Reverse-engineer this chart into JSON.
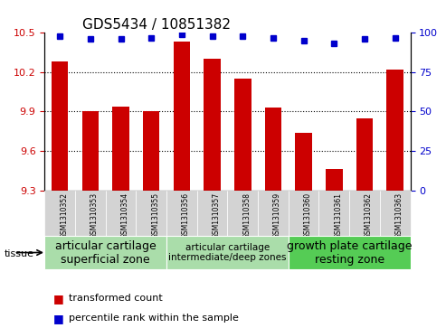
{
  "title": "GDS5434 / 10851382",
  "samples": [
    "GSM1310352",
    "GSM1310353",
    "GSM1310354",
    "GSM1310355",
    "GSM1310356",
    "GSM1310357",
    "GSM1310358",
    "GSM1310359",
    "GSM1310360",
    "GSM1310361",
    "GSM1310362",
    "GSM1310363"
  ],
  "bar_values": [
    10.28,
    9.9,
    9.94,
    9.9,
    10.43,
    10.3,
    10.15,
    9.93,
    9.74,
    9.46,
    9.85,
    10.22
  ],
  "percentile_values": [
    98,
    96,
    96,
    97,
    99,
    98,
    98,
    97,
    95,
    93,
    96,
    97
  ],
  "bar_color": "#cc0000",
  "percentile_color": "#0000cc",
  "ylim_left": [
    9.3,
    10.5
  ],
  "ylim_right": [
    0,
    100
  ],
  "yticks_left": [
    9.3,
    9.6,
    9.9,
    10.2,
    10.5
  ],
  "yticks_right": [
    0,
    25,
    50,
    75,
    100
  ],
  "grid_values": [
    9.6,
    9.9,
    10.2
  ],
  "tissue_groups": [
    {
      "label": "articular cartilage\nsuperficial zone",
      "start": 0,
      "end": 3,
      "color": "#90ee90"
    },
    {
      "label": "articular cartilage\nintermediate/deep zones",
      "start": 4,
      "end": 7,
      "color": "#90ee90"
    },
    {
      "label": "growth plate cartilage\nresting zone",
      "start": 8,
      "end": 11,
      "color": "#00cc00"
    }
  ],
  "tissue_label": "tissue",
  "legend_bar_label": "transformed count",
  "legend_pct_label": "percentile rank within the sample",
  "bg_color_sample": "#d3d3d3",
  "tissue_group1_color": "#aaddaa",
  "tissue_group2_color": "#aaddaa",
  "tissue_group3_color": "#55cc55"
}
